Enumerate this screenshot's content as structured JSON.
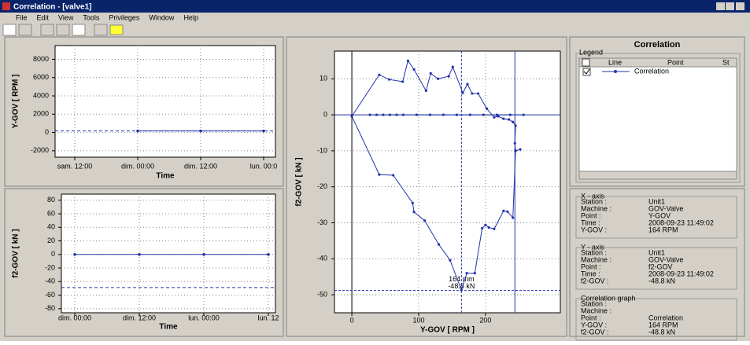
{
  "window": {
    "title": "Correlation - [valve1]",
    "menu": [
      "File",
      "Edit",
      "View",
      "Tools",
      "Privileges",
      "Window",
      "Help"
    ]
  },
  "chart_data": [
    {
      "type": "line",
      "ylabel": "Y-GOV [ RPM ]",
      "xlabel": "Time",
      "categories": [
        "sam. 12:00",
        "dim. 00:00",
        "dim. 12:00",
        "lun. 00:0"
      ],
      "values": [
        null,
        164,
        164,
        164
      ],
      "color": "#2233aa",
      "ylim": [
        -2700,
        9500
      ],
      "yticks": [
        -2000,
        0,
        2000,
        4000,
        6000,
        8000
      ],
      "ref_y": 164,
      "grid": true
    },
    {
      "type": "line",
      "ylabel": "f2-GOV [ kN ]",
      "xlabel": "Time",
      "categories": [
        "dim. 00:00",
        "dim. 12:00",
        "lun. 00:00",
        "lun. 12"
      ],
      "values": [
        0,
        0,
        0,
        0
      ],
      "color": "#2233aa",
      "ylim": [
        -86,
        89
      ],
      "yticks": [
        -80,
        -60,
        -40,
        -20,
        0,
        20,
        40,
        60,
        80
      ],
      "ref_y": -48.8,
      "grid": true
    },
    {
      "type": "xy",
      "xlabel": "Y-GOV [ RPM ]",
      "ylabel": "f2-GOV [ kN ]",
      "xlim": [
        -26,
        312
      ],
      "ylim": [
        -55,
        17.7
      ],
      "xticks": [
        0,
        100,
        200
      ],
      "yticks": [
        -50,
        -40,
        -30,
        -20,
        -10,
        0,
        10
      ],
      "grid": true,
      "cursor_x": 164,
      "cursor_y": -48.8,
      "limit_x": 244,
      "annotations": [
        "164 mm",
        "-48.8 kN"
      ],
      "series": [
        {
          "name": "Correlation",
          "color": "#2233aa",
          "x": [
            0,
            41,
            56,
            76,
            84,
            93,
            111,
            118,
            129,
            145,
            151,
            166,
            173,
            180,
            189,
            202,
            213,
            219,
            227,
            235,
            241,
            245,
            244,
            245,
            252,
            null,
            0,
            41,
            62,
            91,
            93,
            109,
            130,
            147,
            164,
            172,
            184,
            195,
            200,
            205,
            213,
            227,
            233,
            241,
            245,
            null,
            27,
            37,
            47,
            57,
            67,
            77,
            97,
            117,
            137,
            157,
            177,
            197,
            217,
            237,
            257
          ],
          "y": [
            -0.4,
            11.1,
            9.8,
            9.2,
            15,
            12.6,
            6.7,
            11.5,
            10,
            10.7,
            13.3,
            6.1,
            8.5,
            5.9,
            5.9,
            1.7,
            -0.7,
            -0.4,
            -1.1,
            -1.3,
            -2,
            -3,
            -7.9,
            -10,
            -9.6,
            null,
            -0.4,
            -16.6,
            -16.8,
            -24.5,
            -27,
            -29.4,
            -36,
            -40.4,
            -48.7,
            -44,
            -44,
            -31.5,
            -30.6,
            -31.3,
            -31.7,
            -26.7,
            -26.9,
            -28.6,
            -10,
            null,
            0,
            0,
            0,
            0,
            0,
            0,
            0,
            0,
            0,
            0,
            0,
            0,
            0,
            0,
            0
          ]
        }
      ]
    }
  ],
  "panel": {
    "title": "Correlation",
    "legend": {
      "title": "Legend",
      "columns": [
        "Line",
        "Point",
        "St"
      ]
    },
    "groups": [
      {
        "title": "X - axis",
        "rows": [
          [
            "Station :",
            "Unit1"
          ],
          [
            "Machine :",
            "GOV-Valve"
          ],
          [
            "Point :",
            "Y-GOV"
          ],
          [
            "Time :",
            "2008-09-23 11:49:02"
          ],
          [
            "Y-GOV :",
            "164 RPM"
          ]
        ]
      },
      {
        "title": "Y - axis",
        "rows": [
          [
            "Station :",
            "Unit1"
          ],
          [
            "Machine :",
            "GOV-Valve"
          ],
          [
            "Point :",
            "f2-GOV"
          ],
          [
            "Time :",
            "2008-09-23 11:49:02"
          ],
          [
            "f2-GOV :",
            "-48.8 kN"
          ]
        ]
      },
      {
        "title": "Correlation graph",
        "rows": [
          [
            "Station :",
            ""
          ],
          [
            "Machine :",
            ""
          ],
          [
            "Point :",
            "Correlation"
          ],
          [
            "Y-GOV :",
            "164 RPM"
          ],
          [
            "f2-GOV :",
            "-48.8 kN"
          ]
        ]
      }
    ]
  }
}
